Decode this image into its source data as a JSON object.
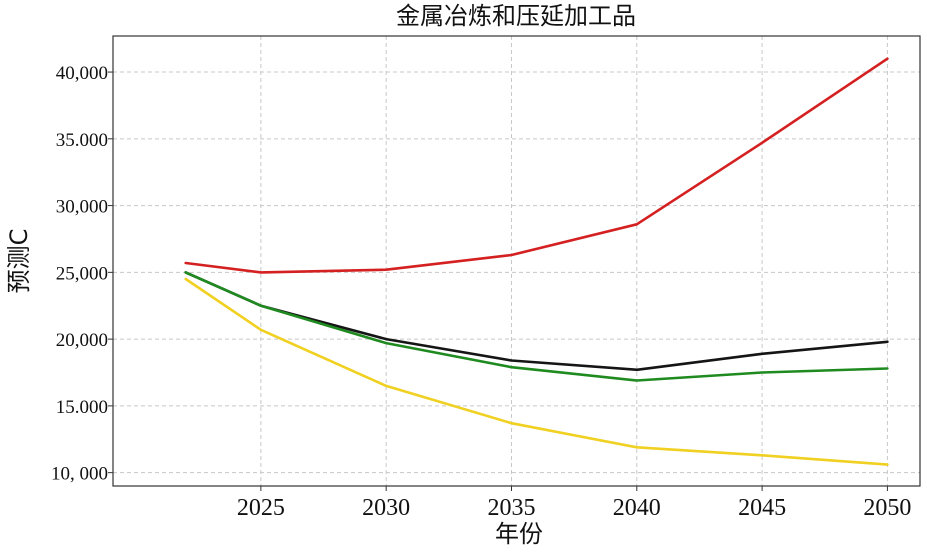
{
  "chart_data": {
    "type": "line",
    "title": "金属冶炼和压延加工品",
    "xlabel": "年份",
    "ylabel": "预测C",
    "xlim": [
      2019.1,
      2051.3
    ],
    "ylim": [
      9000,
      42700
    ],
    "x_ticks": [
      2025,
      2030,
      2035,
      2040,
      2045,
      2050
    ],
    "x_tick_labels": [
      "2025",
      "2030",
      "2035",
      "2040",
      "2045",
      "2050"
    ],
    "y_ticks": [
      10000,
      15000,
      20000,
      25000,
      30000,
      35000,
      40000
    ],
    "y_tick_labels": [
      "10, 000",
      "15.000",
      "20,000",
      "25,000",
      "30,000",
      "35.000",
      "40,000"
    ],
    "grid": true,
    "x": [
      2022,
      2025,
      2030,
      2035,
      2040,
      2045,
      2050
    ],
    "series": [
      {
        "color": "#d42020",
        "values": [
          25700,
          25000,
          25200,
          26300,
          28600,
          34700,
          41000
        ]
      },
      {
        "color": "#151515",
        "values": [
          25000,
          22500,
          20000,
          18400,
          17700,
          18900,
          19800
        ]
      },
      {
        "color": "#1f8a1f",
        "values": [
          25000,
          22500,
          19700,
          17900,
          16900,
          17500,
          17800
        ]
      },
      {
        "color": "#f0d020",
        "values": [
          24500,
          20700,
          16500,
          13700,
          11900,
          11300,
          10600
        ]
      }
    ]
  }
}
